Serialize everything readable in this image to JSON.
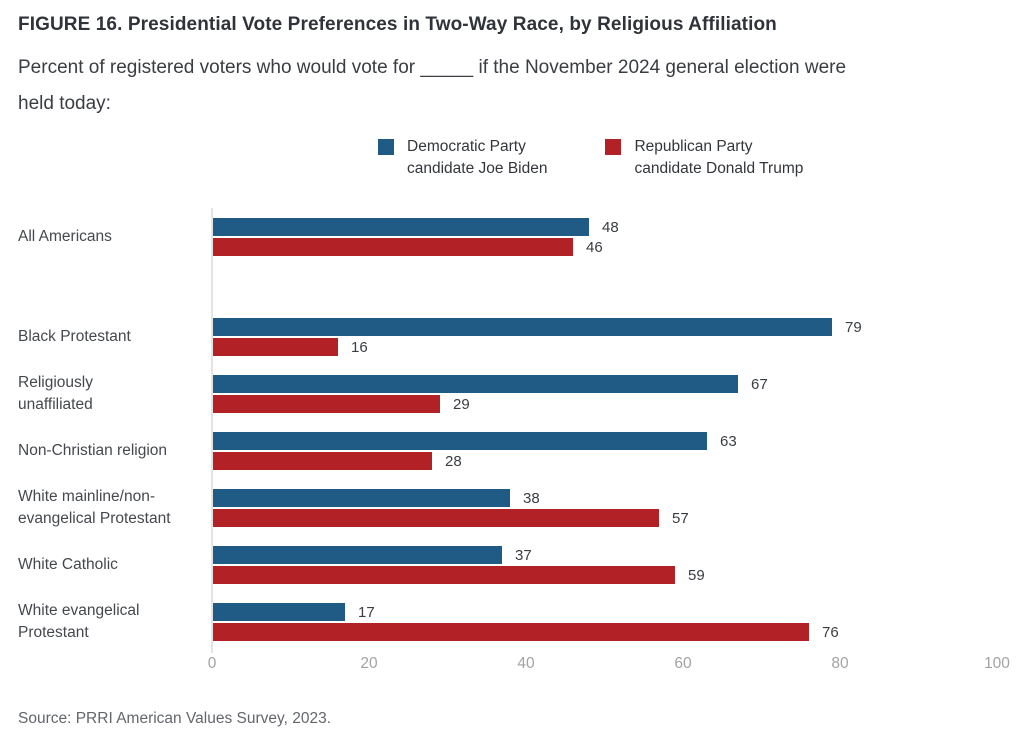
{
  "header": {
    "title": "FIGURE 16. Presidential Vote Preferences in Two-Way Race, by Religious Affiliation",
    "subtitle": "Percent of registered voters who would vote for _____ if the November 2024 general election were\nheld today:"
  },
  "legend": {
    "items": [
      {
        "label": "Democratic Party\ncandidate Joe Biden",
        "color": "#1F5B85"
      },
      {
        "label": "Republican Party\ncandidate Donald Trump",
        "color": "#B22126"
      }
    ]
  },
  "chart_data": {
    "type": "bar",
    "orientation": "horizontal",
    "title": "",
    "xlabel": "",
    "ylabel": "",
    "xlim": [
      0,
      100
    ],
    "x_ticks": [
      0,
      20,
      40,
      60,
      80,
      100
    ],
    "grid": false,
    "legend_position": "top",
    "value_labels": true,
    "categories": [
      "All Americans",
      "Black Protestant",
      "Religiously unaffiliated",
      "Non-Christian religion",
      "White mainline/non-evangelical Protestant",
      "White Catholic",
      "White evangelical Protestant"
    ],
    "category_display": [
      "All Americans",
      "Black Protestant",
      "Religiously\nunaffiliated",
      "Non-Christian religion",
      "White mainline/non-\nevangelical Protestant",
      "White Catholic",
      "White evangelical\nProtestant"
    ],
    "series": [
      {
        "name": "Democratic Party candidate Joe Biden",
        "color": "#1F5B85",
        "values": [
          48,
          79,
          67,
          63,
          38,
          37,
          17
        ]
      },
      {
        "name": "Republican Party candidate Donald Trump",
        "color": "#B22126",
        "values": [
          46,
          16,
          29,
          28,
          57,
          59,
          76
        ]
      }
    ]
  },
  "footer": {
    "source": "Source: PRRI American Values Survey, 2023."
  }
}
